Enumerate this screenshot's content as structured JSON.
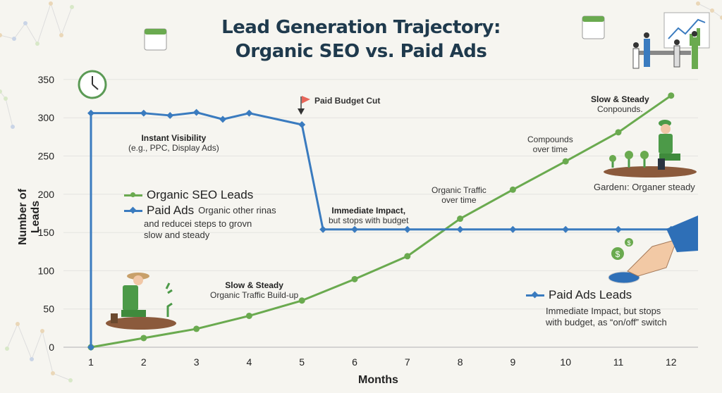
{
  "chart_data": {
    "type": "line",
    "title": "Lead Generation Trajectory: Organic SEO vs. Paid Ads",
    "title_lines": [
      "Lead Generation Trajectory:",
      "Organic SEO vs. Paid Ads"
    ],
    "xlabel": "Months",
    "ylabel": "Number of Leads",
    "xlim": [
      1,
      12
    ],
    "ylim": [
      0,
      350
    ],
    "x_ticks": [
      1,
      2,
      3,
      4,
      5,
      6,
      7,
      8,
      9,
      10,
      11,
      12
    ],
    "y_ticks": [
      0,
      50,
      100,
      150,
      200,
      250,
      300,
      350
    ],
    "grid": "horizontal",
    "series": [
      {
        "name": "Organic SEO Leads",
        "color": "#6aaa4f",
        "x": [
          1,
          2,
          3,
          4,
          5,
          6,
          7,
          8,
          9,
          10,
          11,
          12
        ],
        "y": [
          0,
          12,
          24,
          41,
          61,
          89,
          119,
          168,
          206,
          243,
          281,
          329
        ]
      },
      {
        "name": "Paid Ads Leads",
        "color": "#3a7bbf",
        "x": [
          1,
          1,
          2,
          2.5,
          3,
          3.5,
          4,
          5,
          5.4,
          6,
          7,
          8,
          9,
          10,
          11,
          12
        ],
        "y": [
          0,
          306,
          306,
          303,
          307,
          298,
          306,
          291,
          154,
          154,
          154,
          154,
          154,
          154,
          154,
          154
        ]
      }
    ],
    "annotations": {
      "instant_title": "Instant Visibility",
      "instant_sub": "(e.g., PPC, Display Ads)",
      "budget_cut": "Paid Budget Cut",
      "immediate_title": "Immediate Impact,",
      "immediate_sub": "but stops with budget",
      "slow_title": "Slow & Steady",
      "slow_sub": "Organic Traffic Build-up",
      "organic_over_time_1": "Organic Traffic",
      "organic_over_time_2": "over time",
      "compounds_1": "Compounds",
      "compounds_2": "over time",
      "top_title": "Slow & Steady",
      "top_sub": "Conpounds.",
      "gardener_caption": "Gardenı: Organer steady"
    },
    "legend": {
      "organic": "Organic SEO Leads",
      "paid": "Paid Ads",
      "paid_note_1": "Organic other rinas",
      "paid_note_2": "and reducei steps to grovn",
      "paid_note_3": "slow and steady",
      "paid_leads": "Paid Ads Leads",
      "paid_leads_note_1": "Immediate Impact, but stops",
      "paid_leads_note_2": "with budget, as “on/off” switch"
    }
  }
}
